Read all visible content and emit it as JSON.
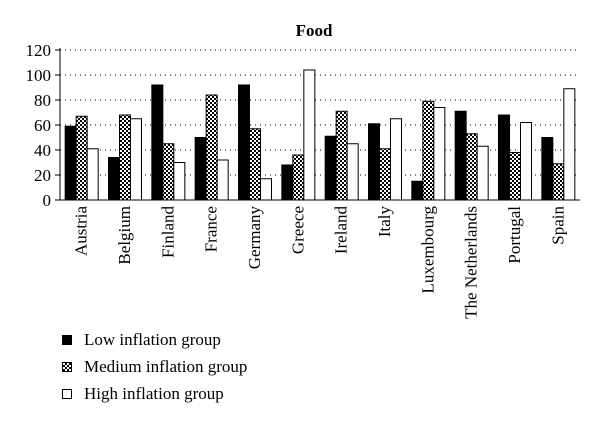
{
  "chart_data": {
    "type": "bar",
    "title": "Food",
    "xlabel": "",
    "ylabel": "",
    "ylim": [
      0,
      120
    ],
    "yticks": [
      0,
      20,
      40,
      60,
      80,
      100,
      120
    ],
    "grid": "horizontal dotted",
    "legend_position": "bottom-left",
    "categories": [
      "Austria",
      "Belgium",
      "Finland",
      "France",
      "Germany",
      "Greece",
      "Ireland",
      "Italy",
      "Luxembourg",
      "The Netherlands",
      "Portugal",
      "Spain"
    ],
    "series": [
      {
        "name": "Low inflation group",
        "fill": "solid",
        "color": "#000000",
        "values": [
          59,
          34,
          92,
          50,
          92,
          28,
          51,
          61,
          15,
          71,
          68,
          50
        ]
      },
      {
        "name": "Medium inflation group",
        "fill": "checker",
        "color": "#000000",
        "values": [
          67,
          68,
          45,
          84,
          57,
          36,
          71,
          41,
          79,
          53,
          38,
          29
        ]
      },
      {
        "name": "High inflation group",
        "fill": "hollow",
        "color": "#ffffff",
        "values": [
          41,
          65,
          30,
          32,
          17,
          104,
          45,
          65,
          74,
          43,
          62,
          89
        ]
      }
    ]
  }
}
